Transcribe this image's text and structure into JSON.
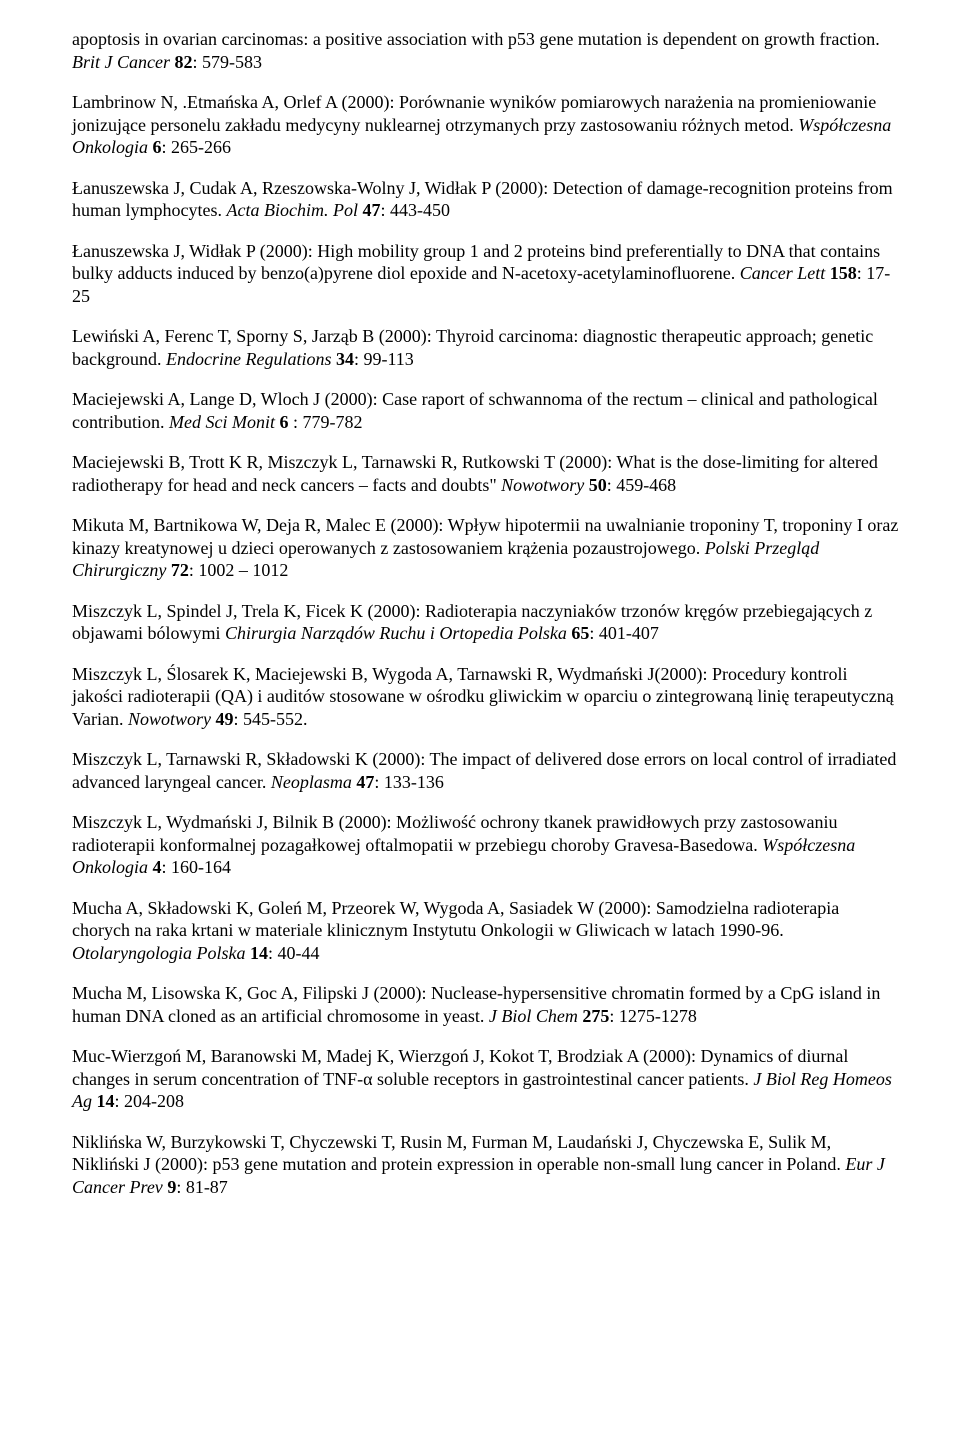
{
  "typography": {
    "font_family": "Times New Roman",
    "font_size_pt": 12,
    "line_height": 1.25,
    "text_color": "#000000",
    "background_color": "#ffffff"
  },
  "references": [
    {
      "prefix": "apoptosis in ovarian carcinomas: a positive association with p53 gene mutation is dependent on growth fraction. ",
      "journal": "Brit J Cancer ",
      "vol": "82",
      "pages": ": 579-583"
    },
    {
      "prefix": "Lambrinow N, .Etmańska A, Orlef A (2000): Porównanie wyników pomiarowych narażenia na promieniowanie jonizujące personelu  zakładu medycyny nuklearnej otrzymanych przy zastosowaniu różnych metod. ",
      "journal": "Współczesna Onkologia ",
      "vol": "6",
      "pages": ": 265-266"
    },
    {
      "prefix": "Łanuszewska J, Cudak A, Rzeszowska-Wolny J, Widłak P (2000): Detection of damage-recognition proteins from human lymphocytes. ",
      "journal": "Acta Biochim. Pol ",
      "vol": "47",
      "pages": ":  443-450"
    },
    {
      "prefix": "Łanuszewska J, Widłak P (2000): High mobility group 1 and 2 proteins bind preferentially to DNA that contains bulky adducts induced by benzo(a)pyrene diol epoxide and N-acetoxy-acetylaminofluorene. ",
      "journal": "Cancer Lett ",
      "vol": "158",
      "pages": ": 17-25"
    },
    {
      "prefix": "Lewiński A, Ferenc T, Sporny S, Jarząb B (2000): Thyroid carcinoma: diagnostic therapeutic approach; genetic background. ",
      "journal": "Endocrine Regulations ",
      "vol": "34",
      "pages": ": 99-113"
    },
    {
      "prefix": "Maciejewski A,  Lange D, Wloch J (2000): Case raport of schwannoma of the rectum – clinical and pathological contribution. ",
      "journal": "Med Sci Monit  ",
      "vol": "6",
      "pages": " : 779-782"
    },
    {
      "prefix": "Maciejewski B, Trott K R,  Miszczyk L, Tarnawski R,  Rutkowski T (2000): What is the dose-limiting for altered radiotherapy for head and neck cancers – facts and doubts\"  ",
      "journal": "Nowotwory  ",
      "vol": "50",
      "pages": ": 459-468"
    },
    {
      "prefix": "Mikuta M, Bartnikowa W, Deja R, Malec E (2000): Wpływ hipotermii na uwalnianie troponiny T, troponiny I oraz kinazy kreatynowej u dzieci operowanych z zastosowaniem krążenia pozaustrojowego. ",
      "journal": "Polski Przegląd Chirurgiczny ",
      "vol": "72",
      "pages": ": 1002 – 1012"
    },
    {
      "prefix": "Miszczyk L,  Spindel J, Trela K, Ficek K (2000): Radioterapia naczyniaków trzonów kręgów przebiegających z objawami bólowymi ",
      "journal": "Chirurgia Narządów Ruchu i Ortopedia Polska ",
      "vol": "65",
      "pages": ": 401-407"
    },
    {
      "prefix": "Miszczyk L, Ślosarek K, Maciejewski B, Wygoda A, Tarnawski R, Wydmański J(2000): Procedury kontroli jakości radioterapii (QA) i auditów stosowane w ośrodku gliwickim w oparciu o zintegrowaną linię terapeutyczną Varian. ",
      "journal": "Nowotwory  ",
      "vol": "49",
      "pages": ": 545-552."
    },
    {
      "prefix": "Miszczyk L, Tarnawski R, Składowski K (2000): The impact of delivered dose errors on local control of irradiated advanced   laryngeal cancer. ",
      "journal": "Neoplasma  ",
      "vol": "47",
      "pages": ": 133-136"
    },
    {
      "prefix": "Miszczyk L, Wydmański J, Bilnik B (2000): Możliwość ochrony tkanek prawidłowych przy zastosowaniu radioterapii konformalnej pozagałkowej oftalmopatii w przebiegu choroby Gravesa-Basedowa. ",
      "journal": "Współczesna Onkologia ",
      "vol": "4",
      "pages": ": 160-164"
    },
    {
      "prefix": "Mucha A, Składowski K, Goleń M, Przeorek W, Wygoda A, Sasiadek W (2000): Samodzielna radioterapia chorych na raka krtani w materiale klinicznym Instytutu Onkologii w Gliwicach w latach 1990-96. ",
      "journal": "Otolaryngologia Polska ",
      "vol": "14",
      "pages": ": 40-44"
    },
    {
      "prefix": "Mucha M, Lisowska K, Goc A, Filipski J (2000): Nuclease-hypersensitive chromatin formed by a CpG island in human DNA cloned as an artificial chromosome in yeast. ",
      "journal": "J Biol Chem  ",
      "vol": "275",
      "pages": ": 1275-1278"
    },
    {
      "prefix": "Muc-Wierzgoń M, Baranowski M, Madej K, Wierzgoń J, Kokot T, Brodziak A (2000): Dynamics of diurnal changes in serum concentration of TNF-α soluble receptors in gastrointestinal cancer patients. ",
      "journal": "J  Biol Reg Homeos Ag  ",
      "vol": "14",
      "pages": ": 204-208"
    },
    {
      "prefix": "Niklińska W,  Burzykowski T,  Chyczewski T,  Rusin M,  Furman M,  Laudański J, Chyczewska E, Sulik M,  Nikliński J (2000):  p53 gene mutation and protein expression in operable non-small lung cancer in Poland. ",
      "journal": "Eur J  Cancer Prev  ",
      "vol": "9",
      "pages": ": 81-87"
    }
  ]
}
